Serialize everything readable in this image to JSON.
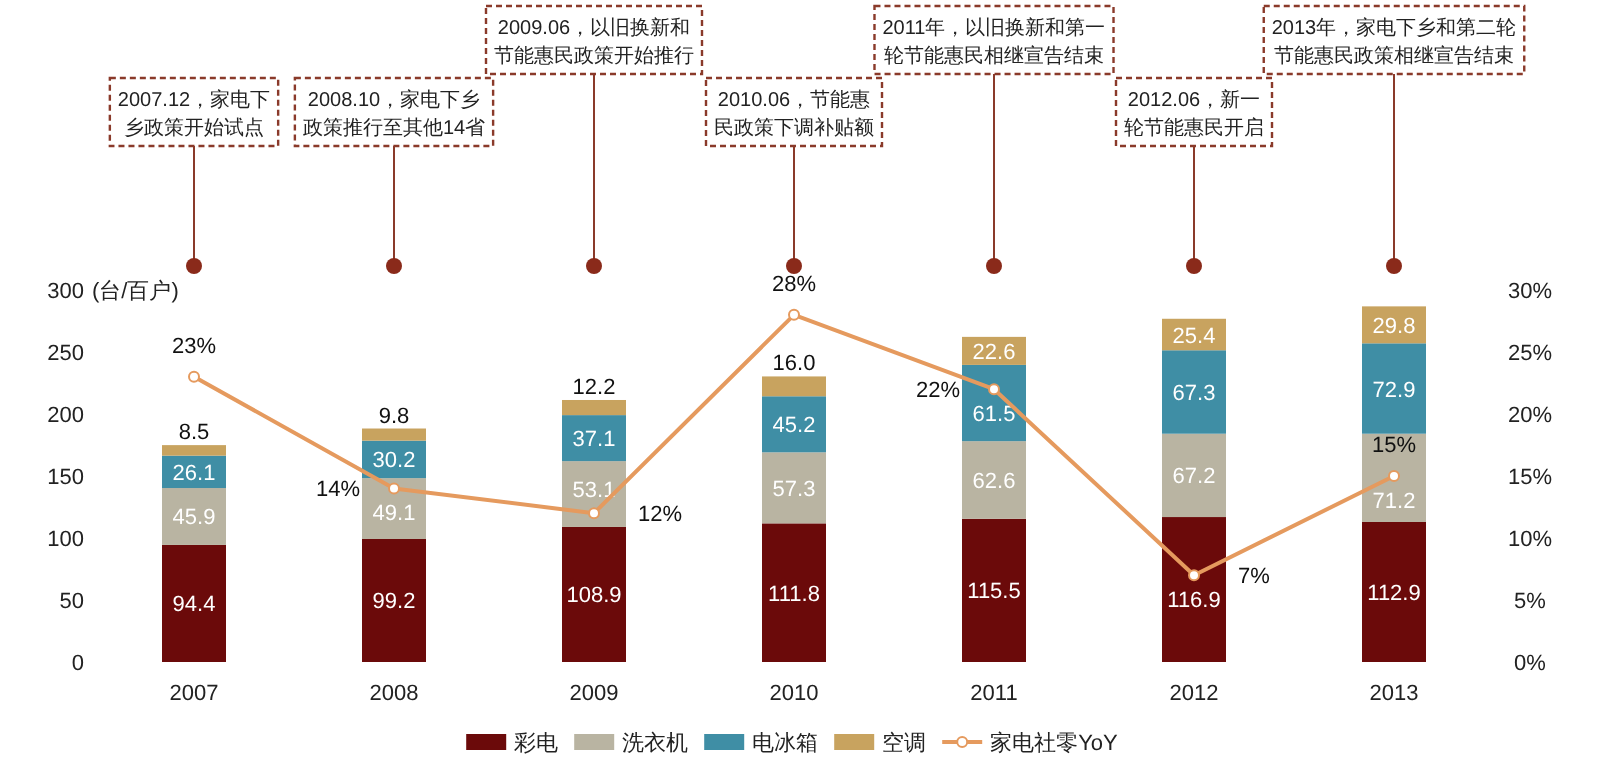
{
  "chart_data": {
    "type": "bar",
    "stacked": true,
    "ylabel": "(台/百户)",
    "categories": [
      "2007",
      "2008",
      "2009",
      "2010",
      "2011",
      "2012",
      "2013"
    ],
    "ylim": [
      0,
      300
    ],
    "yticks": [
      0,
      50,
      100,
      150,
      200,
      250,
      300
    ],
    "y2lim": [
      0,
      30
    ],
    "y2ticks": [
      {
        "value": 0,
        "label": "0%"
      },
      {
        "value": 5,
        "label": "5%"
      },
      {
        "value": 10,
        "label": "10%"
      },
      {
        "value": 15,
        "label": "15%"
      },
      {
        "value": 20,
        "label": "20%"
      },
      {
        "value": 25,
        "label": "25%"
      },
      {
        "value": 30,
        "label": "30%"
      }
    ],
    "data_labels": true,
    "legend": "bottom",
    "series": [
      {
        "name": "彩电",
        "color": "#6b0a0a",
        "values": [
          94.4,
          99.2,
          108.9,
          111.8,
          115.5,
          116.9,
          112.9
        ]
      },
      {
        "name": "洗衣机",
        "color": "#b9b4a2",
        "values": [
          45.9,
          49.1,
          53.1,
          57.3,
          62.6,
          67.2,
          71.2
        ]
      },
      {
        "name": "电冰箱",
        "color": "#3f8ea5",
        "values": [
          26.1,
          30.2,
          37.1,
          45.2,
          61.5,
          67.3,
          72.9
        ]
      },
      {
        "name": "空调",
        "color": "#c8a35f",
        "values": [
          8.5,
          9.8,
          12.2,
          16.0,
          22.6,
          25.4,
          29.8
        ],
        "value_labels": [
          "8.5",
          "9.8",
          "12.2",
          "16.0",
          "22.6",
          "25.4",
          "29.8"
        ]
      },
      {
        "name": "家电社零YoY",
        "type": "line",
        "axis": "y2",
        "color": "#e59a5e",
        "marker": "circle",
        "values": [
          23,
          14,
          12,
          28,
          22,
          7,
          15
        ],
        "value_labels": [
          "23%",
          "14%",
          "12%",
          "28%",
          "22%",
          "7%",
          "15%"
        ]
      }
    ],
    "annotations": [
      "2007.12，家电下乡政策开始试点",
      "2008.10，家电下乡政策推行至其他14省",
      "2009.06，以旧换新和节能惠民政策开始推行",
      "2010.06，节能惠民政策下调补贴额",
      "2011年，以旧换新和第一轮节能惠民相继宣告结束",
      "2012.06，新一轮节能惠民开启",
      "2013年，家电下乡和第二轮节能惠民政策相继宣告结束"
    ]
  }
}
